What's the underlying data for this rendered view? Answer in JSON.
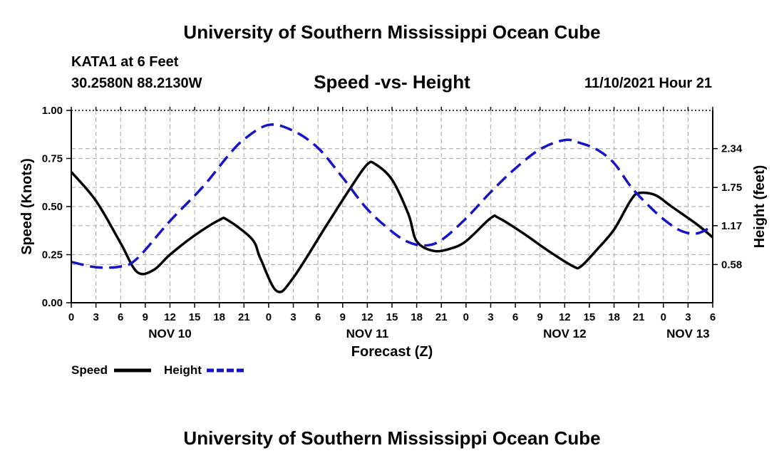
{
  "header": {
    "title": "University of Southern Mississippi Ocean Cube",
    "station": "KATA1 at 6 Feet",
    "coords": "30.2580N  88.2130W",
    "subtitle": "Speed -vs- Height",
    "datetime": "11/10/2021 Hour 21"
  },
  "footer": {
    "title": "University of Southern Mississippi Ocean Cube"
  },
  "chart_data": {
    "type": "line",
    "title": "Speed -vs- Height",
    "xlabel": "Forecast (Z)",
    "ylabel": "Speed (Knots)",
    "y2label": "Height (feet)",
    "x_units": "forecast hour",
    "x_range": [
      0,
      78
    ],
    "x_tick_step": 3,
    "x_tick_labels": [
      "0",
      "3",
      "6",
      "9",
      "12",
      "15",
      "18",
      "21",
      "0",
      "3",
      "6",
      "9",
      "12",
      "15",
      "18",
      "21",
      "0",
      "3",
      "6",
      "9",
      "12",
      "15",
      "18",
      "21",
      "0",
      "3",
      "6"
    ],
    "date_labels": [
      {
        "hour": 12,
        "label": "NOV 10"
      },
      {
        "hour": 36,
        "label": "NOV 11"
      },
      {
        "hour": 60,
        "label": "NOV 12"
      },
      {
        "hour": 75,
        "label": "NOV 13"
      }
    ],
    "ylim": [
      0,
      1
    ],
    "y_ticks": [
      {
        "value": 0,
        "label": "0.00"
      },
      {
        "value": 0.25,
        "label": "0.25"
      },
      {
        "value": 0.5,
        "label": "0.50"
      },
      {
        "value": 0.75,
        "label": "0.75"
      },
      {
        "value": 1,
        "label": "1.00"
      }
    ],
    "y2lim": [
      0.0,
      2.92
    ],
    "y2_ticks": [
      {
        "value": 0.58,
        "label": "0.58"
      },
      {
        "value": 1.17,
        "label": "1.17"
      },
      {
        "value": 1.75,
        "label": "1.75"
      },
      {
        "value": 2.34,
        "label": "2.34"
      }
    ],
    "grid": true,
    "series": [
      {
        "name": "Speed",
        "axis": "left",
        "color": "#000000",
        "dash": "solid",
        "points": [
          [
            0,
            0.68
          ],
          [
            3,
            0.53
          ],
          [
            6,
            0.31
          ],
          [
            8,
            0.16
          ],
          [
            10,
            0.17
          ],
          [
            12,
            0.25
          ],
          [
            15,
            0.35
          ],
          [
            18,
            0.43
          ],
          [
            19,
            0.43
          ],
          [
            22,
            0.33
          ],
          [
            23,
            0.23
          ],
          [
            25,
            0.06
          ],
          [
            27,
            0.13
          ],
          [
            31,
            0.4
          ],
          [
            34,
            0.6
          ],
          [
            36,
            0.72
          ],
          [
            37,
            0.72
          ],
          [
            39,
            0.64
          ],
          [
            41,
            0.46
          ],
          [
            42,
            0.32
          ],
          [
            44,
            0.27
          ],
          [
            46,
            0.28
          ],
          [
            48,
            0.32
          ],
          [
            51,
            0.44
          ],
          [
            52,
            0.44
          ],
          [
            55,
            0.36
          ],
          [
            58,
            0.27
          ],
          [
            61,
            0.19
          ],
          [
            62,
            0.19
          ],
          [
            64,
            0.28
          ],
          [
            66,
            0.38
          ],
          [
            68,
            0.53
          ],
          [
            69,
            0.57
          ],
          [
            71,
            0.56
          ],
          [
            73,
            0.5
          ],
          [
            76,
            0.41
          ],
          [
            78,
            0.34
          ]
        ]
      },
      {
        "name": "Height",
        "axis": "right",
        "color": "#1515c8",
        "dash": "dashed",
        "points": [
          [
            0,
            0.62
          ],
          [
            3,
            0.54
          ],
          [
            6,
            0.55
          ],
          [
            8,
            0.67
          ],
          [
            12,
            1.24
          ],
          [
            16,
            1.76
          ],
          [
            19,
            2.22
          ],
          [
            21,
            2.48
          ],
          [
            24,
            2.7
          ],
          [
            27,
            2.61
          ],
          [
            30,
            2.35
          ],
          [
            33,
            1.9
          ],
          [
            36,
            1.42
          ],
          [
            39,
            1.08
          ],
          [
            41,
            0.92
          ],
          [
            43,
            0.87
          ],
          [
            45,
            0.95
          ],
          [
            48,
            1.28
          ],
          [
            51,
            1.68
          ],
          [
            54,
            2.04
          ],
          [
            57,
            2.33
          ],
          [
            60,
            2.47
          ],
          [
            62,
            2.42
          ],
          [
            64,
            2.32
          ],
          [
            66,
            2.12
          ],
          [
            68,
            1.77
          ],
          [
            70,
            1.5
          ],
          [
            72,
            1.27
          ],
          [
            74,
            1.1
          ],
          [
            76,
            1.05
          ],
          [
            78,
            1.16
          ]
        ]
      }
    ],
    "legend": {
      "placement": "bottom-left",
      "items": [
        {
          "label": "Speed",
          "color": "#000000",
          "dash": "solid"
        },
        {
          "label": "Height",
          "color": "#1515c8",
          "dash": "dashed"
        }
      ]
    }
  }
}
